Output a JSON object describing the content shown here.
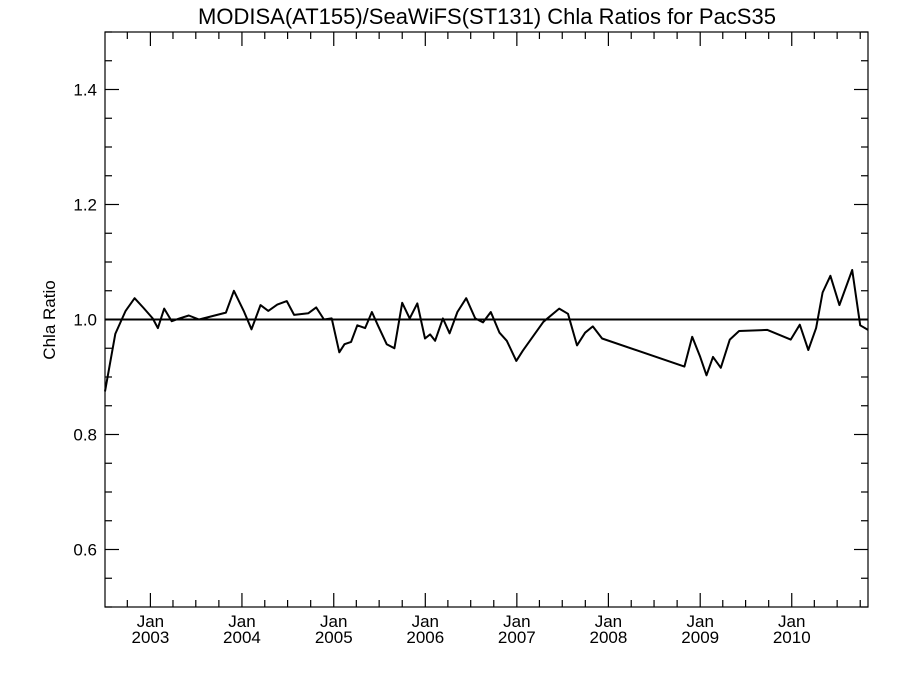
{
  "chart_data": {
    "type": "line",
    "title": "MODISA(AT155)/SeaWiFS(ST131)  Chla Ratios for PacS35",
    "xlabel": "",
    "ylabel": "Chla Ratio",
    "xlim": [
      "2002-07-04",
      "2010-11-01"
    ],
    "ylim": [
      0.5,
      1.5
    ],
    "y_ticks": [
      0.6,
      0.8,
      1.0,
      1.2,
      1.4
    ],
    "x_ticks": [
      {
        "date": "2003-01-01",
        "month": "Jan",
        "year": "2003"
      },
      {
        "date": "2004-01-01",
        "month": "Jan",
        "year": "2004"
      },
      {
        "date": "2005-01-01",
        "month": "Jan",
        "year": "2005"
      },
      {
        "date": "2006-01-01",
        "month": "Jan",
        "year": "2006"
      },
      {
        "date": "2007-01-01",
        "month": "Jan",
        "year": "2007"
      },
      {
        "date": "2008-01-01",
        "month": "Jan",
        "year": "2008"
      },
      {
        "date": "2009-01-01",
        "month": "Jan",
        "year": "2009"
      },
      {
        "date": "2010-01-01",
        "month": "Jan",
        "year": "2010"
      }
    ],
    "reference_line": 1.0,
    "grid": false,
    "series": [
      {
        "points": [
          [
            "2002-07-04",
            0.875
          ],
          [
            "2002-08-14",
            0.975
          ],
          [
            "2002-09-24",
            1.015
          ],
          [
            "2002-10-30",
            1.037
          ],
          [
            "2002-12-05",
            1.02
          ],
          [
            "2003-01-10",
            1.002
          ],
          [
            "2003-01-31",
            0.985
          ],
          [
            "2003-02-25",
            1.019
          ],
          [
            "2003-03-27",
            0.997
          ],
          [
            "2003-04-27",
            1.002
          ],
          [
            "2003-06-03",
            1.007
          ],
          [
            "2003-07-14",
            1.0
          ],
          [
            "2003-10-29",
            1.012
          ],
          [
            "2003-11-30",
            1.05
          ],
          [
            "2004-01-08",
            1.015
          ],
          [
            "2004-02-08",
            0.983
          ],
          [
            "2004-03-15",
            1.025
          ],
          [
            "2004-04-15",
            1.015
          ],
          [
            "2004-05-21",
            1.026
          ],
          [
            "2004-06-28",
            1.032
          ],
          [
            "2004-07-27",
            1.008
          ],
          [
            "2004-09-22",
            1.011
          ],
          [
            "2004-10-23",
            1.021
          ],
          [
            "2004-11-23",
            1.0
          ],
          [
            "2004-12-24",
            1.002
          ],
          [
            "2005-01-23",
            0.943
          ],
          [
            "2005-02-13",
            0.957
          ],
          [
            "2005-03-11",
            0.961
          ],
          [
            "2005-04-05",
            0.99
          ],
          [
            "2005-05-06",
            0.985
          ],
          [
            "2005-06-02",
            1.013
          ],
          [
            "2005-06-27",
            0.989
          ],
          [
            "2005-07-31",
            0.957
          ],
          [
            "2005-08-31",
            0.95
          ],
          [
            "2005-10-01",
            1.029
          ],
          [
            "2005-10-31",
            1.002
          ],
          [
            "2005-11-30",
            1.028
          ],
          [
            "2005-12-31",
            0.967
          ],
          [
            "2006-01-20",
            0.974
          ],
          [
            "2006-02-09",
            0.963
          ],
          [
            "2006-03-12",
            1.002
          ],
          [
            "2006-04-08",
            0.976
          ],
          [
            "2006-05-09",
            1.013
          ],
          [
            "2006-06-13",
            1.037
          ],
          [
            "2006-07-19",
            1.002
          ],
          [
            "2006-08-19",
            0.995
          ],
          [
            "2006-09-19",
            1.013
          ],
          [
            "2006-10-24",
            0.977
          ],
          [
            "2006-11-22",
            0.963
          ],
          [
            "2006-12-30",
            0.928
          ],
          [
            "2007-01-25",
            0.946
          ],
          [
            "2007-04-17",
            0.996
          ],
          [
            "2007-06-19",
            1.019
          ],
          [
            "2007-07-24",
            1.01
          ],
          [
            "2007-08-29",
            0.955
          ],
          [
            "2007-09-30",
            0.977
          ],
          [
            "2007-10-31",
            0.988
          ],
          [
            "2007-12-07",
            0.967
          ],
          [
            "2008-10-30",
            0.918
          ],
          [
            "2008-11-30",
            0.97
          ],
          [
            "2009-01-01",
            0.935
          ],
          [
            "2009-01-26",
            0.903
          ],
          [
            "2009-02-21",
            0.935
          ],
          [
            "2009-03-24",
            0.916
          ],
          [
            "2009-04-29",
            0.965
          ],
          [
            "2009-06-05",
            0.98
          ],
          [
            "2009-09-26",
            0.982
          ],
          [
            "2009-12-28",
            0.965
          ],
          [
            "2010-02-02",
            0.991
          ],
          [
            "2010-03-08",
            0.947
          ],
          [
            "2010-04-08",
            0.985
          ],
          [
            "2010-05-04",
            1.047
          ],
          [
            "2010-06-04",
            1.076
          ],
          [
            "2010-07-10",
            1.025
          ],
          [
            "2010-08-30",
            1.086
          ],
          [
            "2010-10-01",
            0.99
          ],
          [
            "2010-11-01",
            0.982
          ]
        ]
      }
    ]
  }
}
